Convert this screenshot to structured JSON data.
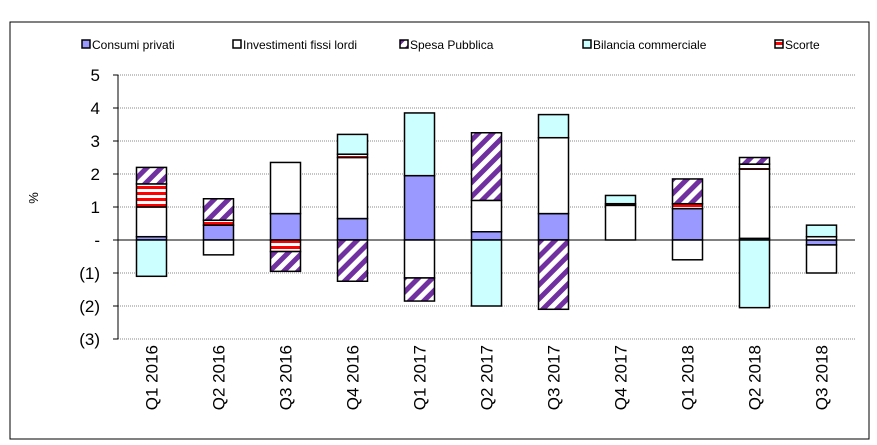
{
  "chart_data": {
    "type": "stacked_bar",
    "y_label": "%",
    "categories": [
      "Q1 2016",
      "Q2 2016",
      "Q3 2016",
      "Q4 2016",
      "Q1 2017",
      "Q2 2017",
      "Q3 2017",
      "Q4 2017",
      "Q1 2018",
      "Q2 2018",
      "Q3 2018"
    ],
    "series": [
      {
        "name": "Consumi privati",
        "color": "#9999ff",
        "pattern": "solid",
        "values": [
          0.1,
          0.45,
          0.8,
          0.65,
          1.95,
          0.25,
          0.8,
          0,
          0.95,
          0.05,
          -0.15
        ]
      },
      {
        "name": "Investimenti fissi lordi",
        "color": "#ffffff",
        "pattern": "solid",
        "values": [
          0.9,
          -0.45,
          1.55,
          1.85,
          -1.15,
          0.95,
          2.3,
          1.05,
          -0.6,
          2.1,
          -0.85
        ]
      },
      {
        "name": "Spesa Pubblica",
        "color": "#7030a0",
        "pattern": "hatch",
        "values": [
          0.5,
          0.65,
          -0.6,
          -1.25,
          -0.7,
          2.05,
          -2.1,
          0,
          0.75,
          0.2,
          0
        ]
      },
      {
        "name": "Bilancia commerciale",
        "color": "#ccffff",
        "pattern": "solid",
        "values": [
          -1.1,
          0,
          0,
          0.6,
          1.9,
          -2.0,
          0.7,
          0.25,
          0,
          -2.05,
          0.35
        ]
      },
      {
        "name": "Scorte",
        "color": "#ff0000",
        "pattern": "stripes",
        "values": [
          0.7,
          0.15,
          -0.35,
          0.1,
          0,
          0,
          0,
          0.05,
          0.15,
          0.15,
          0.1
        ]
      }
    ],
    "stack_order": [
      0,
      1,
      4,
      2,
      3
    ],
    "ylim": [
      -3,
      5
    ],
    "yticks": [
      {
        "value": -3,
        "label": "(3)"
      },
      {
        "value": -2,
        "label": "(2)"
      },
      {
        "value": -1,
        "label": "(1)"
      },
      {
        "value": 0,
        "label": "-"
      },
      1,
      2,
      3,
      4,
      5
    ],
    "grid": true
  }
}
